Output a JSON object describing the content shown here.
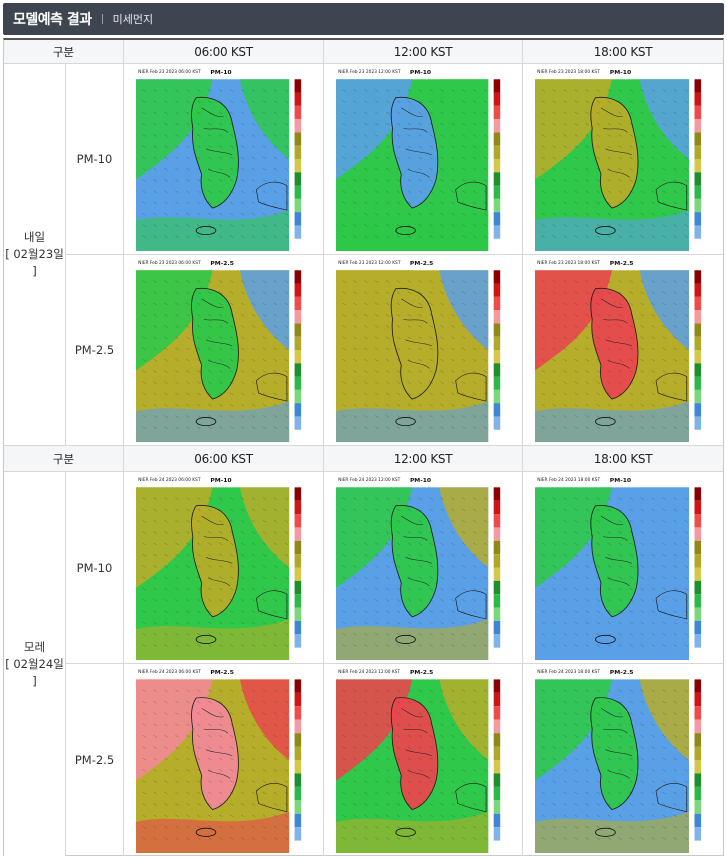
{
  "header": {
    "title": "모델예측 결과",
    "subtitle": "미세먼지"
  },
  "sections": [
    {
      "col_header": "구분",
      "times": [
        "06:00 KST",
        "12:00 KST",
        "18:00 KST"
      ],
      "day_line1": "내일",
      "day_line2": "[ 02월23일 ]",
      "rows": [
        {
          "pollutant": "PM-10",
          "map_title": "PM-10",
          "stamps": [
            "NIER Feb 23 2023 06:00 KST",
            "NIER Feb 23 2023 12:00 KST",
            "NIER Feb 23 2023 18:00 KST"
          ]
        },
        {
          "pollutant": "PM-2.5",
          "map_title": "PM-2.5",
          "stamps": [
            "NIER Feb 23 2023 06:00 KST",
            "NIER Feb 23 2023 12:00 KST",
            "NIER Feb 23 2023 18:00 KST"
          ]
        }
      ]
    },
    {
      "col_header": "구분",
      "times": [
        "06:00 KST",
        "12:00 KST",
        "18:00 KST"
      ],
      "day_line1": "모레",
      "day_line2": "[ 02월24일 ]",
      "rows": [
        {
          "pollutant": "PM-10",
          "map_title": "PM-10",
          "stamps": [
            "NIER Feb 24 2023 06:00 KST",
            "NIER Feb 24 2023 12:00 KST",
            "NIER Feb 24 2023 18:00 KST"
          ]
        },
        {
          "pollutant": "PM-2.5",
          "map_title": "PM-2.5",
          "stamps": [
            "NIER Feb 24 2023 06:00 KST",
            "NIER Feb 24 2023 12:00 KST",
            "NIER Feb 24 2023 18:00 KST"
          ]
        }
      ]
    }
  ],
  "colors": {
    "header_bg": "#3e4550",
    "map_blue": "#5aa0e6",
    "map_green": "#2fc84a",
    "map_olive": "#b6ad2a",
    "map_red": "#e8484e",
    "map_pink": "#f28a96"
  },
  "map_variants": [
    "green-blue",
    "green",
    "green-olive",
    "olive-green",
    "olive-blue",
    "olive-red",
    "olive-yellow",
    "blue-green",
    "blue",
    "red-olive",
    "red-green",
    "blue-olive"
  ]
}
